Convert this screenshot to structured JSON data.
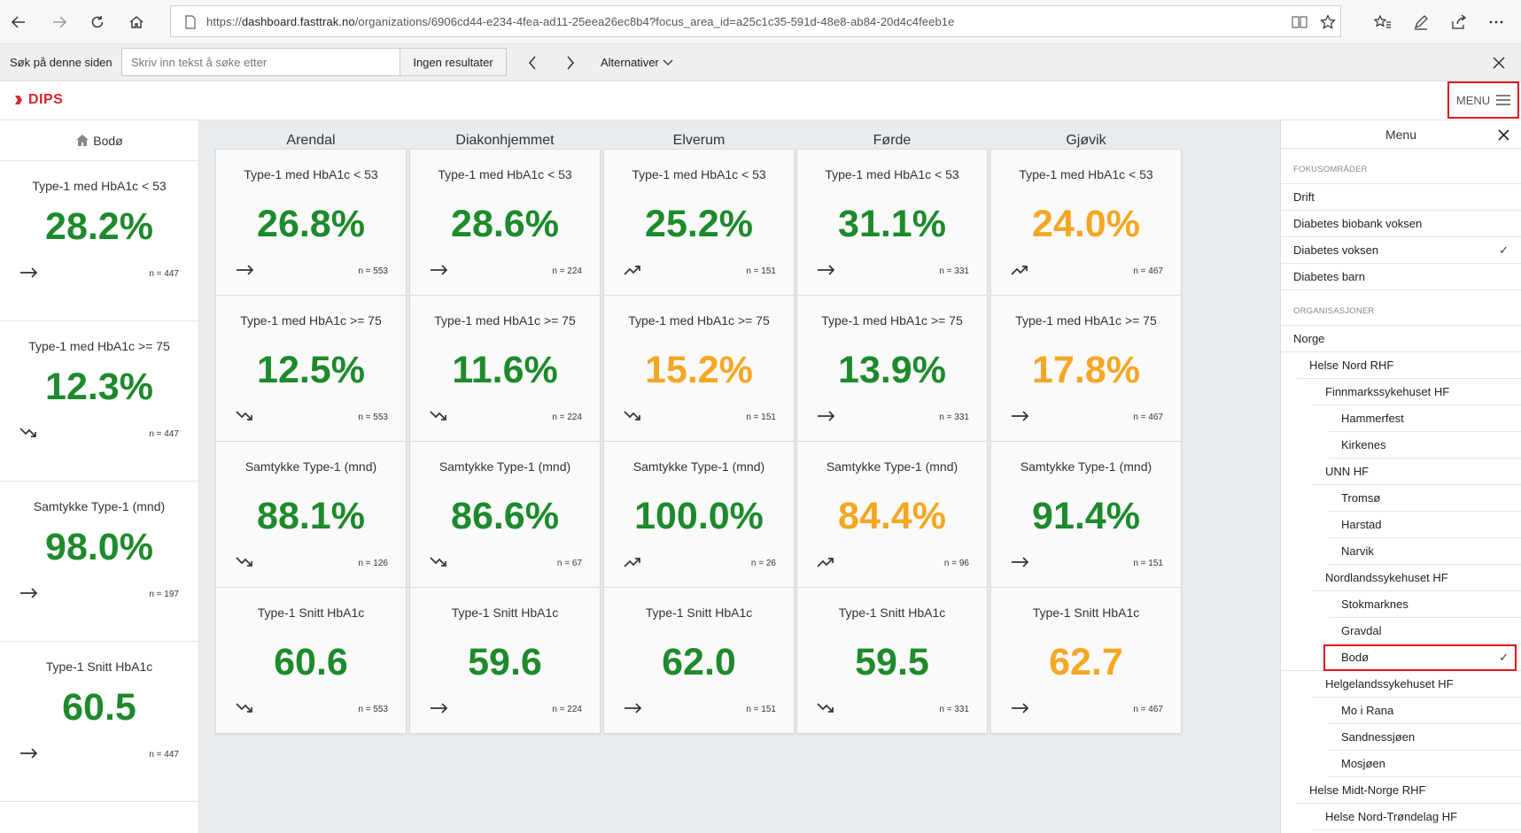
{
  "browser": {
    "url_prefix": "https://",
    "url_domain": "dashboard.fasttrak.no",
    "url_path": "/organizations/6906cd44-e234-4fea-ad11-25eea26ec8b4?focus_area_id=a25c1c35-591d-48e8-ab84-20d4c4feeb1e"
  },
  "find_bar": {
    "label": "Søk på denne siden",
    "placeholder": "Skriv inn tekst å søke etter",
    "result": "Ingen resultater",
    "options": "Alternativer"
  },
  "header": {
    "logo": "DIPS",
    "menu_label": "MENU"
  },
  "current_org": {
    "name": "Bodø",
    "cards": [
      {
        "title": "Type-1 med HbA1c < 53",
        "value": "28.2%",
        "n": "n = 447",
        "trend": "flat",
        "color": "green"
      },
      {
        "title": "Type-1 med HbA1c >= 75",
        "value": "12.3%",
        "n": "n = 447",
        "trend": "down",
        "color": "green"
      },
      {
        "title": "Samtykke Type-1 (mnd)",
        "value": "98.0%",
        "n": "n = 197",
        "trend": "flat",
        "color": "green"
      },
      {
        "title": "Type-1 Snitt HbA1c",
        "value": "60.5",
        "n": "n = 447",
        "trend": "flat",
        "color": "green"
      }
    ]
  },
  "columns": [
    {
      "name": "Arendal",
      "cards": [
        {
          "title": "Type-1 med HbA1c < 53",
          "value": "26.8%",
          "n": "n = 553",
          "trend": "flat",
          "color": "green"
        },
        {
          "title": "Type-1 med HbA1c >= 75",
          "value": "12.5%",
          "n": "n = 553",
          "trend": "down",
          "color": "green"
        },
        {
          "title": "Samtykke Type-1 (mnd)",
          "value": "88.1%",
          "n": "n = 126",
          "trend": "down",
          "color": "green"
        },
        {
          "title": "Type-1 Snitt HbA1c",
          "value": "60.6",
          "n": "n = 553",
          "trend": "down",
          "color": "green"
        }
      ]
    },
    {
      "name": "Diakonhjemmet",
      "cards": [
        {
          "title": "Type-1 med HbA1c < 53",
          "value": "28.6%",
          "n": "n = 224",
          "trend": "flat",
          "color": "green"
        },
        {
          "title": "Type-1 med HbA1c >= 75",
          "value": "11.6%",
          "n": "n = 224",
          "trend": "down",
          "color": "green"
        },
        {
          "title": "Samtykke Type-1 (mnd)",
          "value": "86.6%",
          "n": "n = 67",
          "trend": "down",
          "color": "green"
        },
        {
          "title": "Type-1 Snitt HbA1c",
          "value": "59.6",
          "n": "n = 224",
          "trend": "flat",
          "color": "green"
        }
      ]
    },
    {
      "name": "Elverum",
      "cards": [
        {
          "title": "Type-1 med HbA1c < 53",
          "value": "25.2%",
          "n": "n = 151",
          "trend": "up",
          "color": "green"
        },
        {
          "title": "Type-1 med HbA1c >= 75",
          "value": "15.2%",
          "n": "n = 151",
          "trend": "down",
          "color": "orange"
        },
        {
          "title": "Samtykke Type-1 (mnd)",
          "value": "100.0%",
          "n": "n = 26",
          "trend": "up",
          "color": "green"
        },
        {
          "title": "Type-1 Snitt HbA1c",
          "value": "62.0",
          "n": "n = 151",
          "trend": "flat",
          "color": "green"
        }
      ]
    },
    {
      "name": "Førde",
      "cards": [
        {
          "title": "Type-1 med HbA1c < 53",
          "value": "31.1%",
          "n": "n = 331",
          "trend": "flat",
          "color": "green"
        },
        {
          "title": "Type-1 med HbA1c >= 75",
          "value": "13.9%",
          "n": "n = 331",
          "trend": "flat",
          "color": "green"
        },
        {
          "title": "Samtykke Type-1 (mnd)",
          "value": "84.4%",
          "n": "n = 96",
          "trend": "up",
          "color": "orange"
        },
        {
          "title": "Type-1 Snitt HbA1c",
          "value": "59.5",
          "n": "n = 331",
          "trend": "down",
          "color": "green"
        }
      ]
    },
    {
      "name": "Gjøvik",
      "cards": [
        {
          "title": "Type-1 med HbA1c < 53",
          "value": "24.0%",
          "n": "n = 467",
          "trend": "up",
          "color": "orange"
        },
        {
          "title": "Type-1 med HbA1c >= 75",
          "value": "17.8%",
          "n": "n = 467",
          "trend": "flat",
          "color": "orange"
        },
        {
          "title": "Samtykke Type-1 (mnd)",
          "value": "91.4%",
          "n": "n = 151",
          "trend": "flat",
          "color": "green"
        },
        {
          "title": "Type-1 Snitt HbA1c",
          "value": "62.7",
          "n": "n = 467",
          "trend": "flat",
          "color": "orange"
        }
      ]
    }
  ],
  "menu": {
    "title": "Menu",
    "focus_heading": "FOKUSOMRÅDER",
    "focus_items": [
      {
        "label": "Drift",
        "checked": false
      },
      {
        "label": "Diabetes biobank voksen",
        "checked": false
      },
      {
        "label": "Diabetes voksen",
        "checked": true
      },
      {
        "label": "Diabetes barn",
        "checked": false
      }
    ],
    "org_heading": "ORGANISASJONER",
    "org_items": [
      {
        "label": "Norge",
        "level": 0,
        "checked": false
      },
      {
        "label": "Helse Nord RHF",
        "level": 1,
        "checked": false
      },
      {
        "label": "Finnmarkssykehuset HF",
        "level": 2,
        "checked": false
      },
      {
        "label": "Hammerfest",
        "level": 3,
        "checked": false
      },
      {
        "label": "Kirkenes",
        "level": 3,
        "checked": false
      },
      {
        "label": "UNN HF",
        "level": 2,
        "checked": false
      },
      {
        "label": "Tromsø",
        "level": 3,
        "checked": false
      },
      {
        "label": "Harstad",
        "level": 3,
        "checked": false
      },
      {
        "label": "Narvik",
        "level": 3,
        "checked": false
      },
      {
        "label": "Nordlandssykehuset HF",
        "level": 2,
        "checked": false
      },
      {
        "label": "Stokmarknes",
        "level": 3,
        "checked": false
      },
      {
        "label": "Gravdal",
        "level": 3,
        "checked": false
      },
      {
        "label": "Bodø",
        "level": 3,
        "checked": true
      },
      {
        "label": "Helgelandssykehuset HF",
        "level": 2,
        "checked": false
      },
      {
        "label": "Mo i Rana",
        "level": 3,
        "checked": false
      },
      {
        "label": "Sandnessjøen",
        "level": 3,
        "checked": false
      },
      {
        "label": "Mosjøen",
        "level": 3,
        "checked": false
      },
      {
        "label": "Helse Midt-Norge RHF",
        "level": 1,
        "checked": false
      },
      {
        "label": "Helse Nord-Trøndelag HF",
        "level": 2,
        "checked": false
      }
    ]
  },
  "colors": {
    "green": "#1d8a2b",
    "orange": "#f5a623",
    "brand": "#d8262e",
    "highlight": "#e0141e"
  }
}
